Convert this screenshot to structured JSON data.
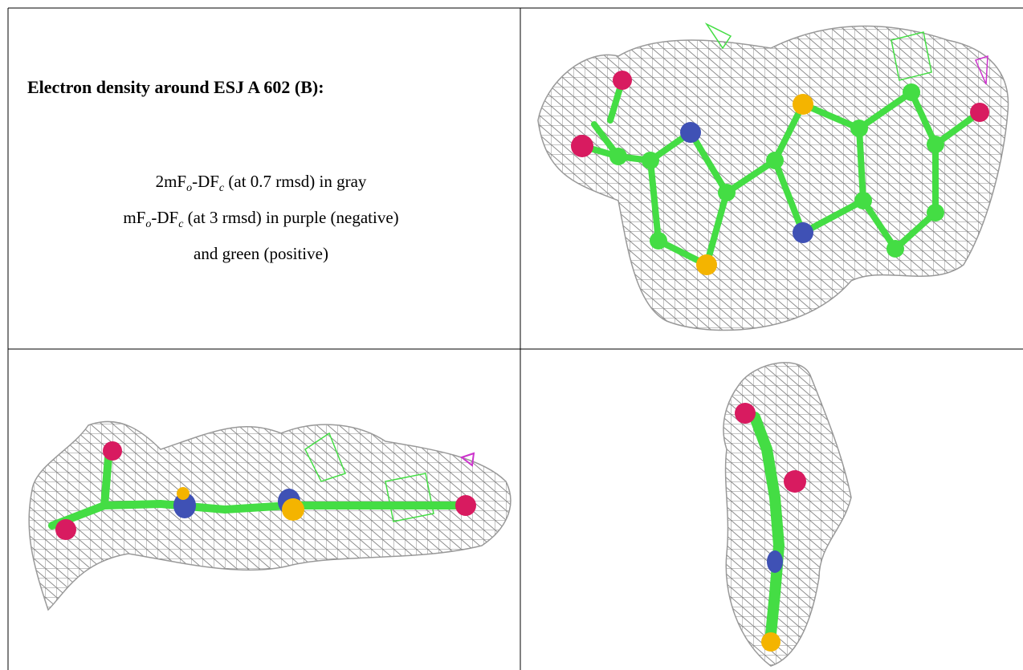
{
  "header": {
    "title": "Electron density around ESJ A 602 (B):"
  },
  "legend": {
    "lines": [
      [
        "2mF",
        "o",
        "-DF",
        "c",
        " (at 0.7 rmsd) in gray"
      ],
      [
        "mF",
        "o",
        "-DF",
        "c",
        " (at 3 rmsd) in purple (negative)"
      ],
      [
        "and green (positive)"
      ]
    ]
  }
}
